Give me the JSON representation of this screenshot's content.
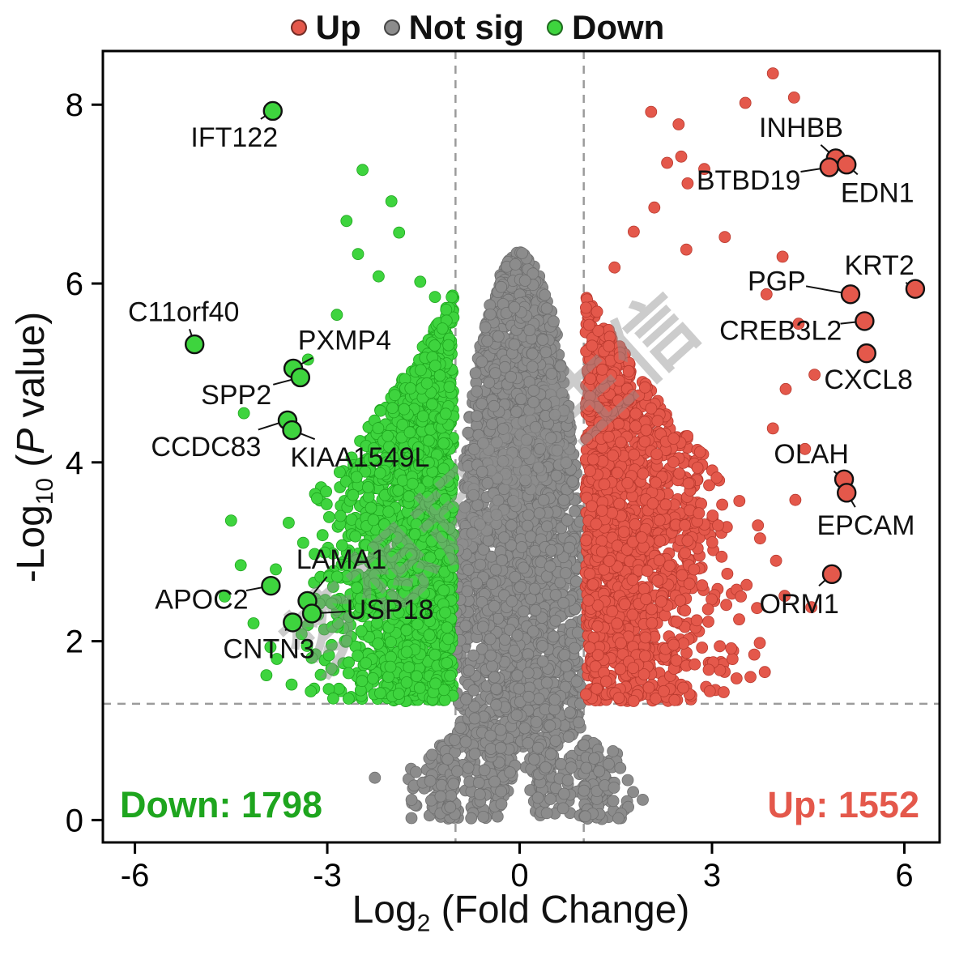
{
  "figure": {
    "watermark": "梦想起航生信"
  },
  "legend": [
    {
      "label": "Up",
      "color": "#e4584b"
    },
    {
      "label": "Not sig",
      "color": "#8c8c8c"
    },
    {
      "label": "Down",
      "color": "#3ed43e"
    }
  ],
  "axes": {
    "xlabel": {
      "pre": "Log",
      "sub": "2",
      "post": " (Fold Change)"
    },
    "ylabel": {
      "pre": "-Log",
      "sub": "10",
      "mid": " (",
      "italic": "P",
      "post": " value)"
    }
  },
  "annotations": {
    "down_count": "Down: 1798",
    "up_count": "Up: 1552"
  },
  "chart_data": {
    "type": "scatter",
    "title": "",
    "xlabel": "Log2 (Fold Change)",
    "ylabel": "-Log10 (P value)",
    "xlim": [
      -6.5,
      6.55
    ],
    "ylim": [
      -0.25,
      8.6
    ],
    "x_ticks": [
      -6,
      -3,
      0,
      3,
      6
    ],
    "y_ticks": [
      0,
      2,
      4,
      6,
      8
    ],
    "grid": false,
    "legend_position": "top-center",
    "thresholds": {
      "x": [
        -1,
        1
      ],
      "y": 1.3
    },
    "colors": {
      "up": "#e4584b",
      "up_stroke": "#b8392e",
      "down": "#3ed43e",
      "down_stroke": "#1ea51e",
      "not_sig": "#8c8c8c",
      "not_sig_stroke": "#6f6f6f"
    },
    "counts": {
      "up": 1552,
      "down": 1798
    },
    "labeled_genes": [
      {
        "name": "IFT122",
        "side": "down",
        "x": -3.85,
        "y": 7.93,
        "tx": -4.45,
        "ty": 7.64
      },
      {
        "name": "C11orf40",
        "side": "down",
        "x": -5.07,
        "y": 5.32,
        "tx": -5.24,
        "ty": 5.69
      },
      {
        "name": "PXMP4",
        "side": "down",
        "x": -3.53,
        "y": 5.05,
        "tx": -2.73,
        "ty": 5.37
      },
      {
        "name": "SPP2",
        "side": "down",
        "x": -3.42,
        "y": 4.95,
        "tx": -4.42,
        "ty": 4.76
      },
      {
        "name": "CCDC83",
        "side": "down",
        "x": -3.62,
        "y": 4.47,
        "tx": -4.89,
        "ty": 4.18
      },
      {
        "name": "KIAA1549L",
        "side": "down",
        "x": -3.55,
        "y": 4.36,
        "tx": -2.49,
        "ty": 4.06
      },
      {
        "name": "LAMA1",
        "side": "down",
        "x": -3.31,
        "y": 2.45,
        "tx": -2.78,
        "ty": 2.92
      },
      {
        "name": "APOC2",
        "side": "down",
        "x": -3.88,
        "y": 2.62,
        "tx": -4.96,
        "ty": 2.47
      },
      {
        "name": "USP18",
        "side": "down",
        "x": -3.24,
        "y": 2.31,
        "tx": -2.02,
        "ty": 2.36
      },
      {
        "name": "CNTN3",
        "side": "down",
        "x": -3.54,
        "y": 2.21,
        "tx": -3.91,
        "ty": 1.92
      },
      {
        "name": "INHBB",
        "side": "up",
        "x": 4.93,
        "y": 7.4,
        "tx": 4.39,
        "ty": 7.75
      },
      {
        "name": "BTBD19",
        "side": "up",
        "x": 4.83,
        "y": 7.3,
        "tx": 3.57,
        "ty": 7.16
      },
      {
        "name": "EDN1",
        "side": "up",
        "x": 5.1,
        "y": 7.33,
        "tx": 5.58,
        "ty": 7.02
      },
      {
        "name": "KRT2",
        "side": "up",
        "x": 6.17,
        "y": 5.94,
        "tx": 5.61,
        "ty": 6.21
      },
      {
        "name": "PGP",
        "side": "up",
        "x": 5.16,
        "y": 5.88,
        "tx": 4.01,
        "ty": 6.03
      },
      {
        "name": "CREB3L2",
        "side": "up",
        "x": 5.38,
        "y": 5.58,
        "tx": 4.07,
        "ty": 5.48
      },
      {
        "name": "CXCL8",
        "side": "up",
        "x": 5.41,
        "y": 5.22,
        "tx": 5.44,
        "ty": 4.93
      },
      {
        "name": "OLAH",
        "side": "up",
        "x": 5.06,
        "y": 3.81,
        "tx": 4.55,
        "ty": 4.1
      },
      {
        "name": "EPCAM",
        "side": "up",
        "x": 5.1,
        "y": 3.66,
        "tx": 5.4,
        "ty": 3.3
      },
      {
        "name": "ORM1",
        "side": "up",
        "x": 4.87,
        "y": 2.75,
        "tx": 4.36,
        "ty": 2.42
      }
    ],
    "extra_points": {
      "down": [
        [
          -2.45,
          7.27
        ],
        [
          -2.0,
          6.92
        ],
        [
          -1.88,
          6.57
        ],
        [
          -2.7,
          6.7
        ],
        [
          -2.52,
          6.33
        ],
        [
          -2.2,
          6.08
        ],
        [
          -1.55,
          6.02
        ],
        [
          -1.32,
          5.85
        ],
        [
          -2.85,
          5.65
        ],
        [
          -3.3,
          5.15
        ],
        [
          -4.3,
          4.55
        ],
        [
          -4.5,
          3.35
        ],
        [
          -4.35,
          2.85
        ],
        [
          -4.6,
          2.5
        ],
        [
          -4.15,
          2.2
        ],
        [
          -3.95,
          1.62
        ]
      ],
      "up": [
        [
          2.05,
          7.92
        ],
        [
          2.48,
          7.78
        ],
        [
          2.52,
          7.42
        ],
        [
          2.3,
          7.35
        ],
        [
          2.88,
          7.28
        ],
        [
          2.62,
          7.12
        ],
        [
          3.52,
          8.02
        ],
        [
          3.95,
          8.35
        ],
        [
          4.28,
          8.08
        ],
        [
          2.1,
          6.85
        ],
        [
          1.78,
          6.58
        ],
        [
          3.2,
          6.52
        ],
        [
          2.6,
          6.38
        ],
        [
          4.1,
          6.3
        ],
        [
          1.48,
          6.18
        ],
        [
          3.85,
          5.88
        ],
        [
          4.35,
          5.55
        ],
        [
          4.6,
          4.98
        ],
        [
          4.15,
          4.82
        ],
        [
          3.95,
          4.38
        ],
        [
          4.45,
          4.15
        ],
        [
          4.3,
          3.58
        ],
        [
          3.75,
          3.15
        ],
        [
          4.0,
          2.9
        ],
        [
          3.45,
          2.5
        ],
        [
          4.55,
          2.38
        ],
        [
          3.3,
          1.92
        ],
        [
          2.95,
          1.68
        ],
        [
          3.6,
          1.6
        ],
        [
          2.55,
          1.48
        ]
      ]
    },
    "cloud": {
      "seed": 7,
      "gray_n": 3000,
      "green_n": 1798,
      "red_n": 1552
    }
  }
}
